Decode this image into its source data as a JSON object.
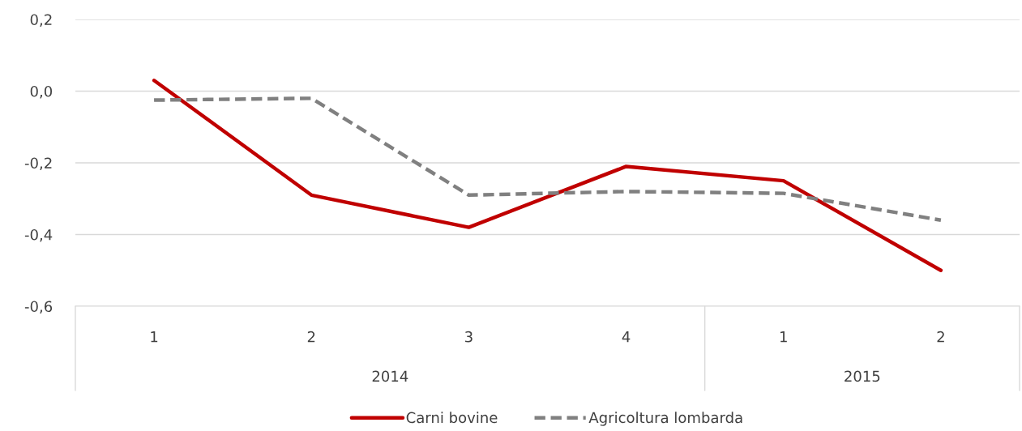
{
  "chart_data": {
    "type": "line",
    "categories": [
      "1",
      "2",
      "3",
      "4",
      "1",
      "2"
    ],
    "annotations": [
      "2014",
      "2015"
    ],
    "series": [
      {
        "name": "Carni bovine",
        "color": "#c00000",
        "line_style": "solid",
        "values": [
          0.03,
          -0.29,
          -0.38,
          -0.21,
          -0.25,
          -0.5
        ]
      },
      {
        "name": "Agricoltura lombarda",
        "color": "#808080",
        "line_style": "dashed",
        "values": [
          -0.025,
          -0.02,
          -0.29,
          -0.28,
          -0.285,
          -0.36
        ]
      }
    ],
    "ylim": [
      -0.6,
      0.2
    ],
    "yticks": [
      {
        "value": -0.6,
        "label": "-0,6"
      },
      {
        "value": -0.4,
        "label": "-0,4"
      },
      {
        "value": -0.2,
        "label": "-0,2"
      },
      {
        "value": 0.0,
        "label": "0,0"
      },
      {
        "value": 0.2,
        "label": "0,2"
      }
    ],
    "grid": "y",
    "legend": "bottom",
    "marker": "none"
  }
}
